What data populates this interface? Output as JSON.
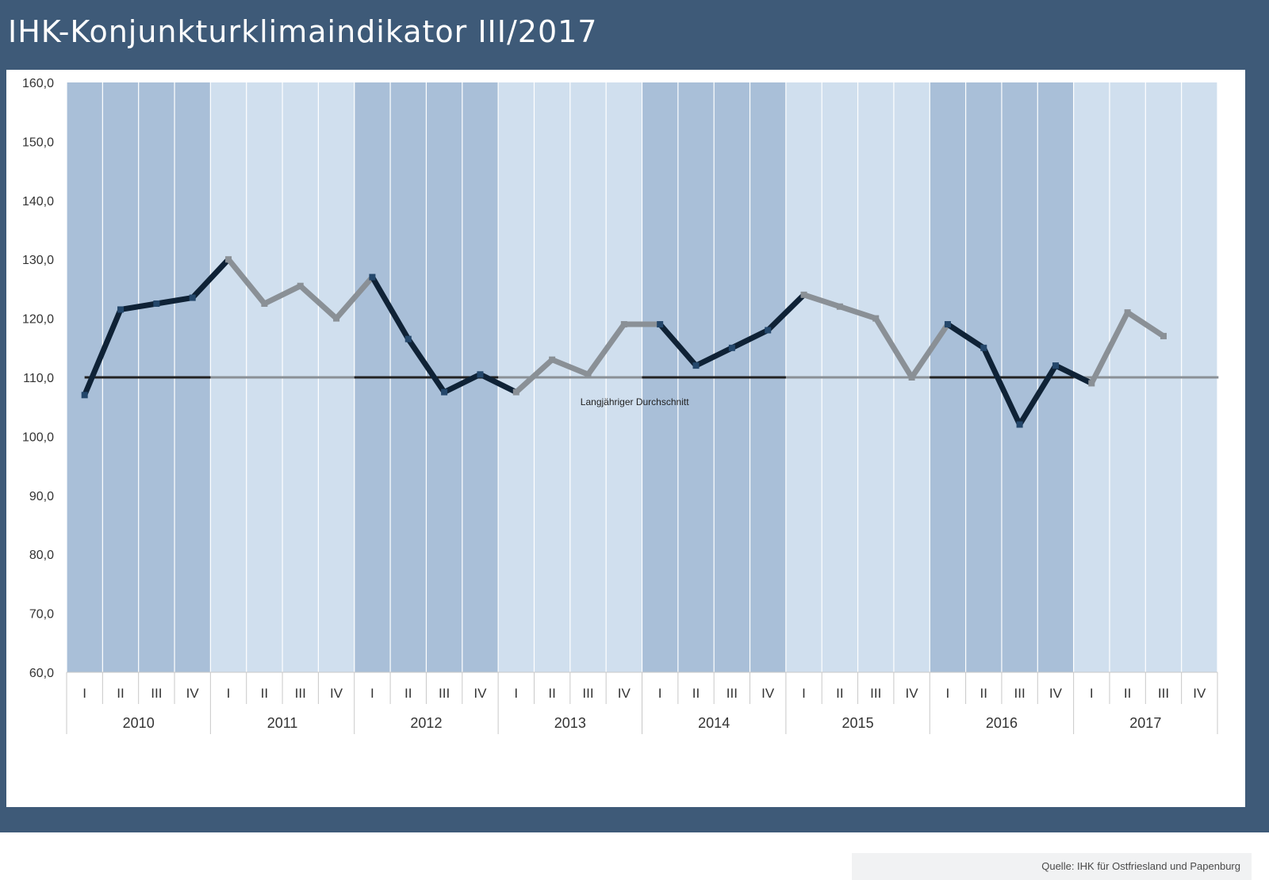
{
  "header": {
    "title": "IHK-Konjunkturklimaindikator III/2017"
  },
  "footer": {
    "source": "Quelle: IHK für Ostfriesland und Papenburg"
  },
  "colors": {
    "frame": "#3e5a78",
    "band_dark": "#a9bfd8",
    "band_light": "#d0dfee",
    "series_dark": "#0f2236",
    "series_light": "#8a9096",
    "average_line": "#222222",
    "marker": "#24476b"
  },
  "chart_data": {
    "type": "line",
    "title": "IHK-Konjunkturklimaindikator III/2017",
    "ylim": [
      60,
      160
    ],
    "yticks": [
      "60,0",
      "70,0",
      "80,0",
      "90,0",
      "100,0",
      "110,0",
      "120,0",
      "130,0",
      "140,0",
      "150,0",
      "160,0"
    ],
    "years": [
      "2010",
      "2011",
      "2012",
      "2013",
      "2014",
      "2015",
      "2016",
      "2017"
    ],
    "quarters": [
      "I",
      "II",
      "III",
      "IV"
    ],
    "year_shading": [
      "dark",
      "light",
      "dark",
      "light",
      "dark",
      "light",
      "dark",
      "light"
    ],
    "series": [
      {
        "values": [
          107,
          121.5,
          122.5,
          123.5,
          130,
          122.5,
          125.5,
          120,
          127,
          116.5,
          107.5,
          110.5,
          107.5,
          113,
          110.5,
          119,
          119,
          112,
          115,
          118,
          124,
          122,
          120,
          110,
          119,
          115,
          102,
          112,
          109,
          121,
          117
        ]
      }
    ],
    "average": {
      "value": 110,
      "label": "Langjähriger Durchschnitt"
    },
    "grid": false
  }
}
